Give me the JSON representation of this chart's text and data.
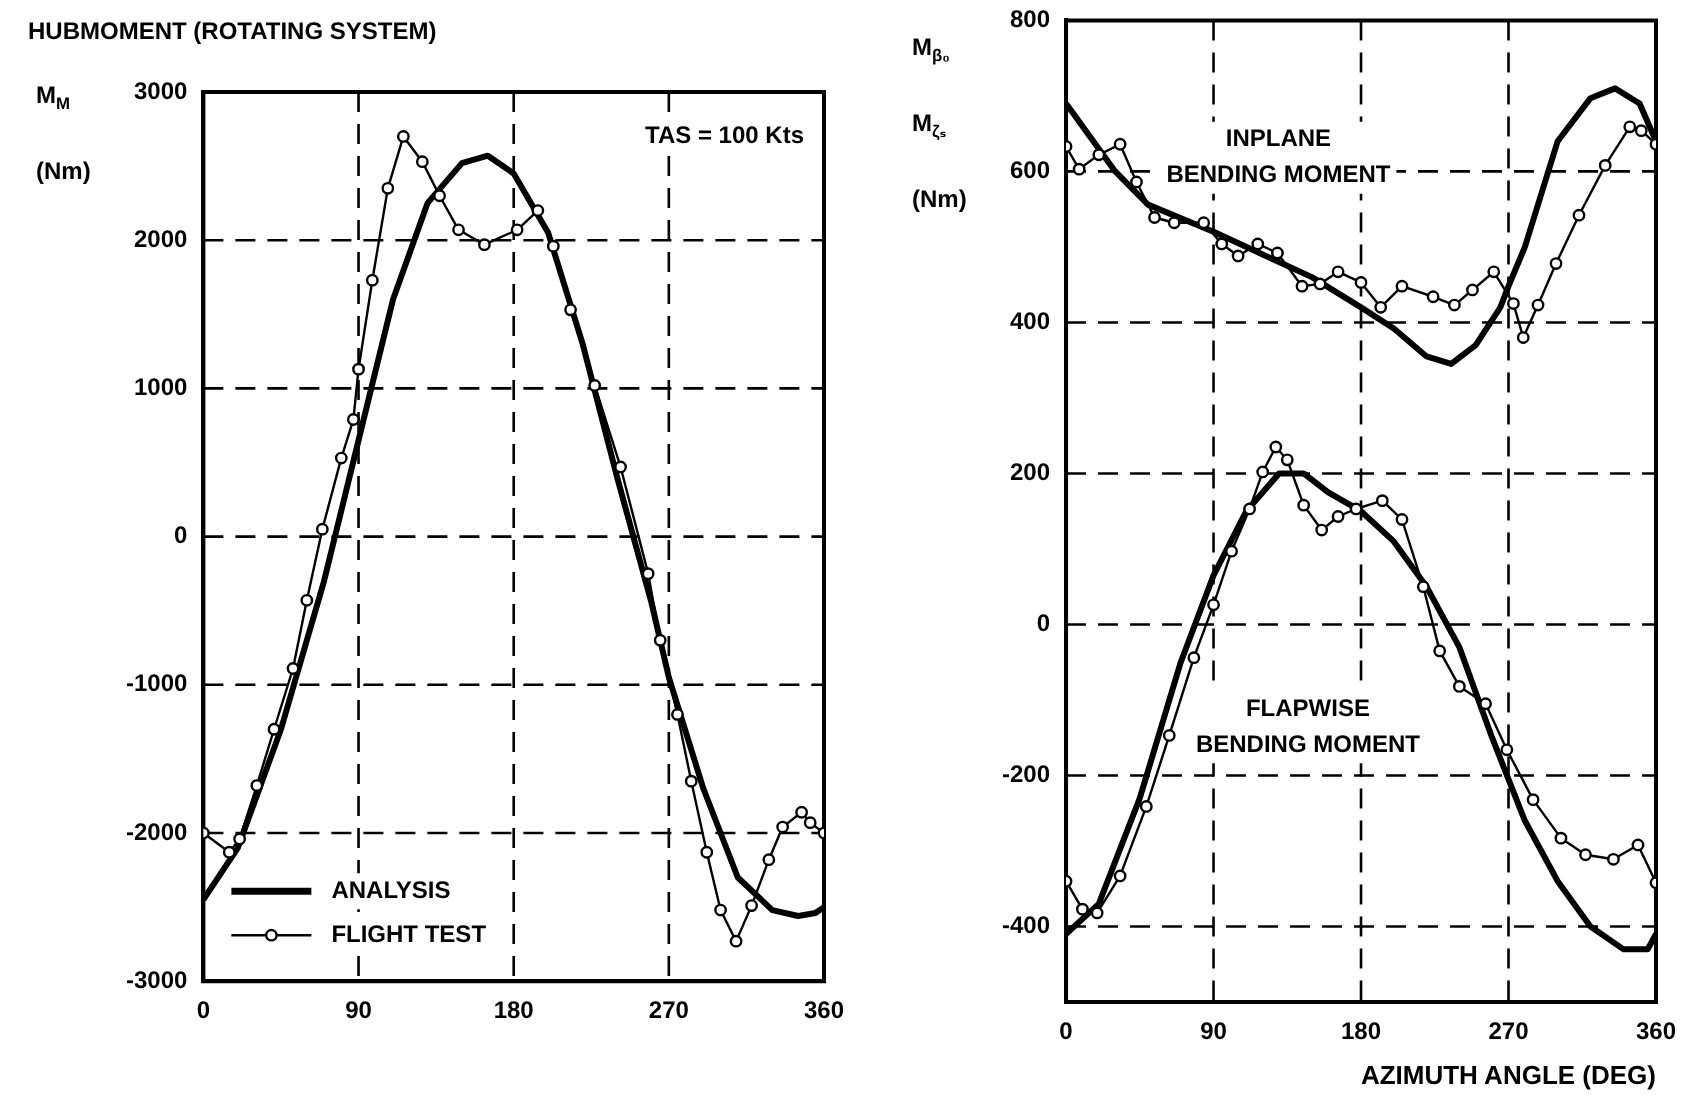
{
  "chart_data": [
    {
      "type": "line",
      "title": "HUBMOMENT (ROTATING SYSTEM)",
      "ylabel": "M$_{M}$ (Nm)",
      "xlim": [
        0,
        360
      ],
      "xticks": [
        0,
        90,
        180,
        270,
        360
      ],
      "ylim": [
        -3000,
        3000
      ],
      "yticks": [
        -3000,
        -2000,
        -1000,
        0,
        1000,
        2000,
        3000
      ],
      "grid": true,
      "legend": "bottom",
      "annotations": [
        "TAS = 100 Kts"
      ],
      "series": [
        {
          "name": "ANALYSIS",
          "color": "#000000",
          "marker": "none",
          "x": [
            0,
            20,
            45,
            70,
            90,
            110,
            130,
            150,
            165,
            180,
            200,
            220,
            240,
            260,
            270,
            290,
            310,
            330,
            345,
            355,
            360
          ],
          "values": [
            -2450,
            -2100,
            -1300,
            -300,
            650,
            1600,
            2250,
            2520,
            2570,
            2450,
            2050,
            1300,
            400,
            -450,
            -950,
            -1700,
            -2300,
            -2520,
            -2560,
            -2540,
            -2500
          ]
        },
        {
          "name": "FLIGHT TEST",
          "color": "#000000",
          "marker": "circle",
          "x": [
            0,
            15,
            21,
            31,
            41,
            52,
            60,
            69,
            80,
            87,
            90,
            98,
            107,
            116,
            127,
            137,
            148,
            163,
            182,
            194,
            203,
            213,
            227,
            242,
            258,
            265,
            275,
            283,
            292,
            300,
            309,
            318,
            328,
            336,
            347,
            352,
            360
          ],
          "values": [
            -2000,
            -2130,
            -2040,
            -1680,
            -1300,
            -890,
            -430,
            50,
            530,
            790,
            1130,
            1730,
            2350,
            2700,
            2530,
            2300,
            2070,
            1970,
            2070,
            2200,
            1960,
            1530,
            1020,
            470,
            -250,
            -700,
            -1200,
            -1650,
            -2130,
            -2520,
            -2730,
            -2490,
            -2180,
            -1960,
            -1860,
            -1930,
            -2000
          ]
        }
      ]
    },
    {
      "type": "line",
      "xlabel": "AZIMUTH ANGLE (DEG)",
      "ylabel": "M$_{β₀}$ M$_{ζₛ}$ (Nm)",
      "xlim": [
        0,
        360
      ],
      "xticks": [
        0,
        90,
        180,
        270,
        360
      ],
      "ylim": [
        -500,
        800
      ],
      "yticks": [
        -400,
        -200,
        0,
        200,
        400,
        600,
        800
      ],
      "grid": true,
      "annotations": [
        "INPLANE BENDING MOMENT",
        "FLAPWISE BENDING MOMENT"
      ],
      "series": [
        {
          "color": "#000000",
          "marker": "none",
          "x": [
            0,
            30,
            50,
            90,
            120,
            150,
            180,
            200,
            220,
            235,
            250,
            265,
            270,
            280,
            300,
            320,
            335,
            350,
            360
          ],
          "values": [
            690,
            600,
            556,
            520,
            490,
            460,
            420,
            392,
            355,
            345,
            370,
            420,
            448,
            500,
            640,
            697,
            710,
            690,
            640
          ]
        },
        {
          "color": "#000000",
          "marker": "circle",
          "x": [
            0,
            8,
            20,
            33,
            43,
            54,
            66,
            84,
            95,
            105,
            117,
            129,
            144,
            155,
            166,
            180,
            192,
            205,
            224,
            237,
            248,
            261,
            273,
            279,
            288,
            299,
            313,
            329,
            344,
            351,
            360
          ],
          "values": [
            633,
            603,
            622,
            636,
            586,
            539,
            532,
            532,
            504,
            488,
            504,
            492,
            448,
            451,
            467,
            453,
            420,
            448,
            434,
            423,
            443,
            467,
            425,
            380,
            423,
            478,
            542,
            608,
            659,
            654,
            636
          ]
        },
        {
          "color": "#000000",
          "marker": "none",
          "x": [
            0,
            20,
            45,
            70,
            90,
            110,
            130,
            145,
            160,
            180,
            200,
            220,
            240,
            260,
            280,
            300,
            320,
            340,
            355,
            360
          ],
          "values": [
            -410,
            -370,
            -230,
            -50,
            65,
            150,
            200,
            200,
            175,
            150,
            110,
            50,
            -30,
            -150,
            -260,
            -340,
            -400,
            -430,
            -430,
            -410
          ]
        },
        {
          "color": "#000000",
          "marker": "circle",
          "x": [
            0,
            10,
            19,
            33,
            49,
            63,
            78,
            90,
            101,
            112,
            120,
            128,
            135,
            145,
            156,
            166,
            177,
            193,
            205,
            218,
            228,
            240,
            256,
            269,
            285,
            302,
            317,
            334,
            349,
            360
          ],
          "values": [
            -340,
            -377,
            -382,
            -333,
            -241,
            -147,
            -44,
            26,
            97,
            153,
            202,
            235,
            218,
            158,
            125,
            143,
            153,
            164,
            139,
            50,
            -35,
            -82,
            -105,
            -166,
            -232,
            -283,
            -305,
            -311,
            -292,
            -342
          ]
        }
      ]
    }
  ]
}
